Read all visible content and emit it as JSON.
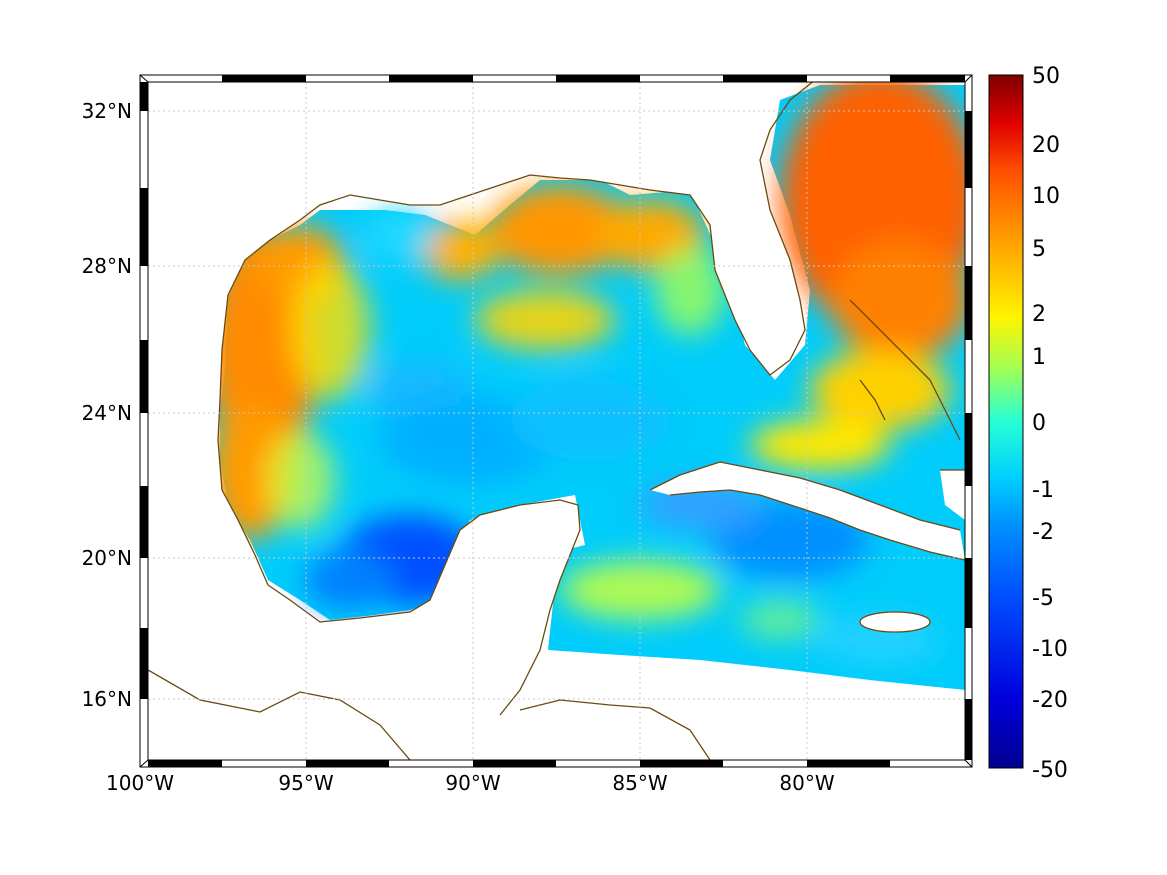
{
  "map": {
    "type": "heatmap",
    "projection": "lat-lon",
    "lon_range": [
      -100,
      -75.5
    ],
    "lat_range": [
      14.3,
      33.0
    ],
    "grid": true,
    "x_ticks": [
      {
        "lon": -100,
        "label": "100°W"
      },
      {
        "lon": -95,
        "label": "95°W"
      },
      {
        "lon": -90,
        "label": "90°W"
      },
      {
        "lon": -85,
        "label": "85°W"
      },
      {
        "lon": -80,
        "label": "80°W"
      }
    ],
    "y_ticks": [
      {
        "lat": 32,
        "label": "32°N"
      },
      {
        "lat": 28,
        "label": "28°N"
      },
      {
        "lat": 24,
        "label": "24°N"
      },
      {
        "lat": 20,
        "label": "20°N"
      },
      {
        "lat": 16,
        "label": "16°N"
      }
    ],
    "coastline_color": "#6b4a12",
    "land_color": "#ffffff"
  },
  "colorbar": {
    "scale": "symmetric-log",
    "ticks": [
      "50",
      "20",
      "10",
      "5",
      "2",
      "1",
      "0",
      "-1",
      "-2",
      "-5",
      "-10",
      "-20",
      "-50"
    ],
    "colors": [
      "#7f0000",
      "#e00000",
      "#ff5000",
      "#ffa800",
      "#fff400",
      "#a6ff4f",
      "#27ffd4",
      "#00d0ff",
      "#0090ff",
      "#0050ff",
      "#0000dd",
      "#00008f"
    ]
  },
  "chart_data": {
    "type": "heatmap",
    "title": "",
    "xlabel": "",
    "ylabel": "",
    "value_range": [
      -50,
      50
    ],
    "regions": [
      {
        "area": "western Gulf shelf (Texas/Mexico)",
        "value": 6
      },
      {
        "area": "northern Gulf shelf (Louisiana/Florida panhandle)",
        "value": 5
      },
      {
        "area": "central Gulf",
        "value": -1.5
      },
      {
        "area": "Bay of Campeche",
        "value": -8
      },
      {
        "area": "Atlantic east of Florida",
        "value": 8
      },
      {
        "area": "Caribbean south of Cuba",
        "value": -2
      },
      {
        "area": "Bahamas banks",
        "value": 3
      }
    ]
  }
}
